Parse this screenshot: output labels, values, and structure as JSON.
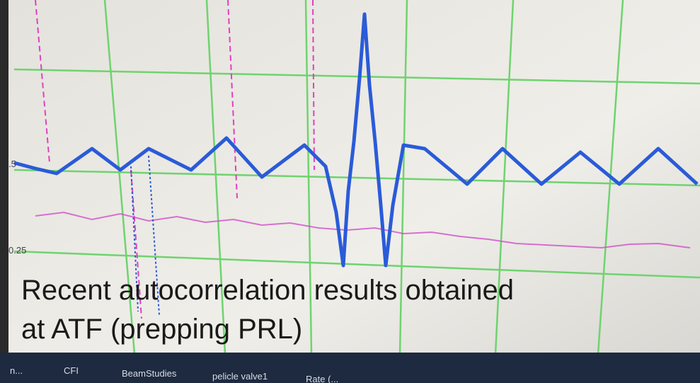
{
  "screen": {
    "axis_labels": [
      ".5",
      "0.25"
    ]
  },
  "caption": {
    "lines": [
      "Recent autocorrelation results obtained",
      "at ATF (prepping PRL)"
    ]
  },
  "taskbar": {
    "items": [
      "n...",
      "CFI",
      "BeamStudies",
      "pelicle valve1",
      "Rate (..."
    ]
  }
}
